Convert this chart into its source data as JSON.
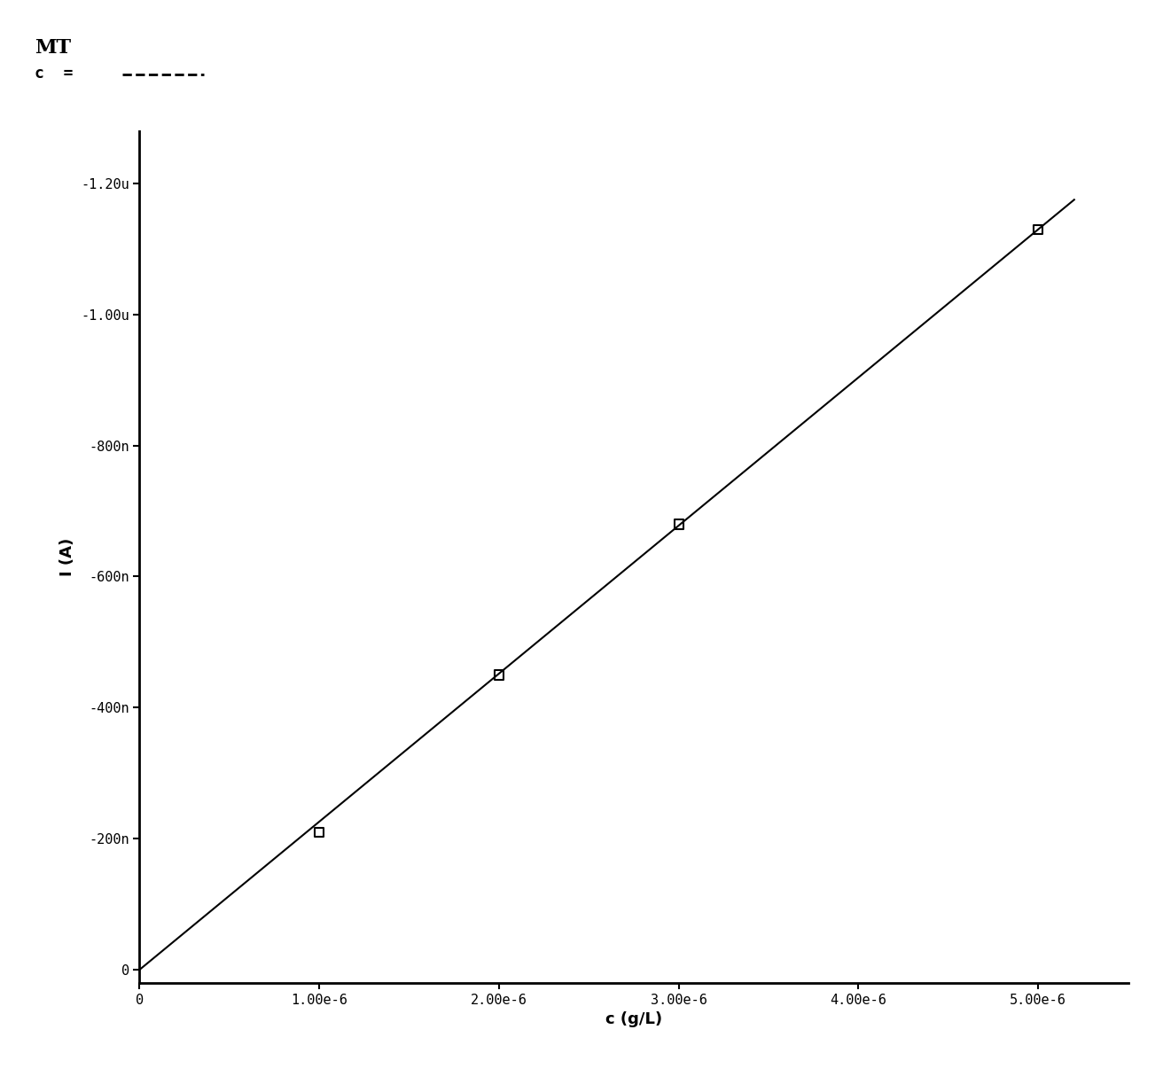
{
  "title_line1": "MT",
  "xlabel": "c (g/L)",
  "ylabel": "I (A)",
  "x_data": [
    1e-06,
    2e-06,
    3e-06,
    5e-06
  ],
  "y_data": [
    -2.1e-07,
    -4.5e-07,
    -6.8e-07,
    -1.13e-06
  ],
  "xlim": [
    0,
    5.5e-06
  ],
  "ylim": [
    -1.28e-06,
    2e-08
  ],
  "xticks": [
    0,
    1e-06,
    2e-06,
    3e-06,
    4e-06,
    5e-06
  ],
  "yticks": [
    0,
    -2e-07,
    -4e-07,
    -6e-07,
    -8e-07,
    -1e-06,
    -1.2e-06
  ],
  "xtick_labels": [
    "0",
    "1.00e-6",
    "2.00e-6",
    "3.00e-6",
    "4.00e-6",
    "5.00e-6"
  ],
  "ytick_labels": [
    "0",
    "-200n",
    "-400n",
    "-600n",
    "-800n",
    "-1.00u",
    "-1.20u"
  ],
  "line_color": "#000000",
  "marker_color": "#000000",
  "background_color": "#ffffff",
  "fit_x": [
    0,
    5.2e-06
  ],
  "fit_slope": -2.26e-07,
  "title_fontsize": 16,
  "axis_label_fontsize": 13,
  "tick_fontsize": 11
}
